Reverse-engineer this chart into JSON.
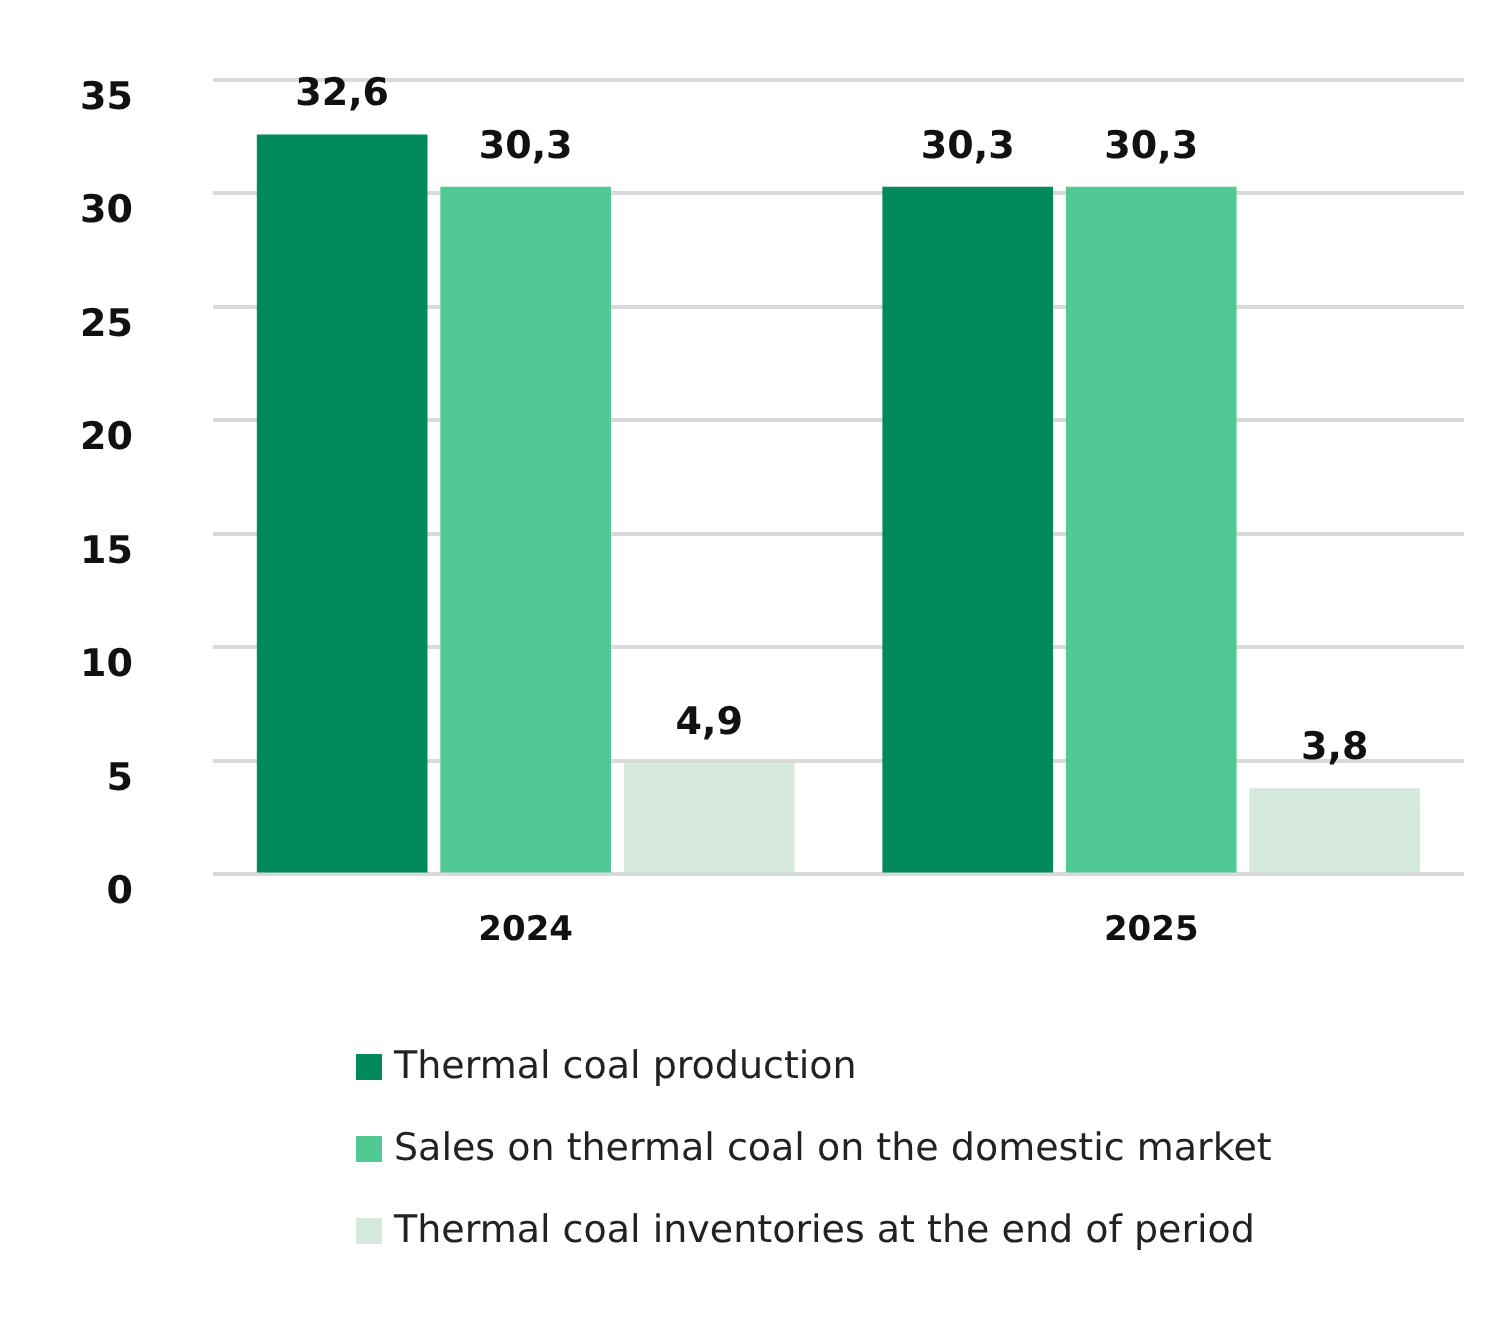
{
  "chart_data": {
    "type": "bar",
    "categories": [
      "2024",
      "2025"
    ],
    "series": [
      {
        "name": "Thermal coal production",
        "color": "#008a5a",
        "values": [
          32.6,
          30.3
        ],
        "value_labels": [
          "32,6",
          "30,3"
        ]
      },
      {
        "name": "Sales on thermal coal on the domestic market",
        "color": "#50c995",
        "values": [
          30.3,
          30.3
        ],
        "value_labels": [
          "30,3",
          "30,3"
        ]
      },
      {
        "name": "Thermal coal inventories at the end of period",
        "color": "#d4e9dc",
        "values": [
          4.9,
          3.8
        ],
        "value_labels": [
          "4,9",
          "3,8"
        ]
      }
    ],
    "ylim": [
      0,
      35
    ],
    "yticks": [
      0,
      5,
      10,
      15,
      20,
      25,
      30,
      35
    ],
    "grid": "y",
    "legend": "bottom"
  }
}
